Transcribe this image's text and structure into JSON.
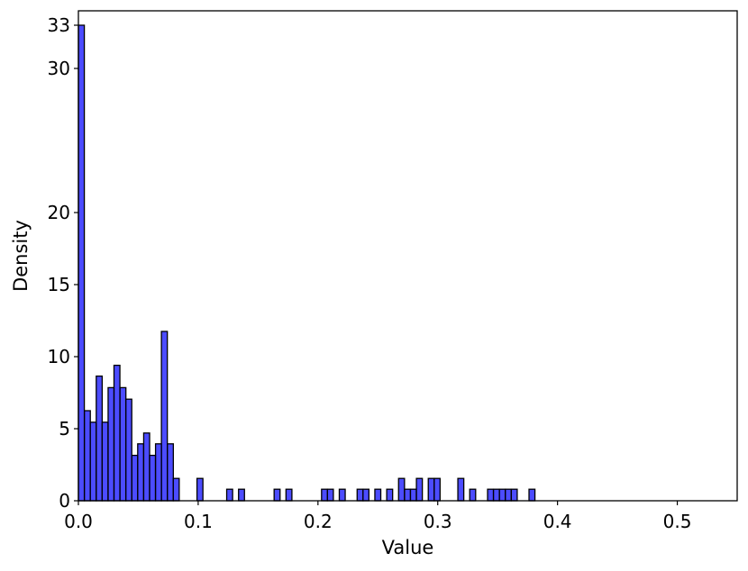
{
  "chart_data": {
    "type": "bar",
    "title": "",
    "xlabel": "Value",
    "ylabel": "Density",
    "xlim": [
      0.0,
      0.55
    ],
    "ylim": [
      0,
      34
    ],
    "xticks": [
      0.0,
      0.1,
      0.2,
      0.3,
      0.4,
      0.5
    ],
    "xtick_labels": [
      "0.0",
      "0.1",
      "0.2",
      "0.3",
      "0.4",
      "0.5"
    ],
    "yticks": [
      0,
      5,
      10,
      15,
      20,
      30,
      33
    ],
    "ytick_labels": [
      "0",
      "5",
      "10",
      "15",
      "20",
      "30",
      "33"
    ],
    "grid": false,
    "legend": "none",
    "bar_color": "#0000ff",
    "bar_opacity": 0.7,
    "edge_color": "#000000",
    "bin_width": 0.00495,
    "series": [
      {
        "values": [
          [
            0.0,
            33.0
          ],
          [
            0.005,
            6.25
          ],
          [
            0.0099,
            5.45
          ],
          [
            0.0149,
            8.65
          ],
          [
            0.0198,
            5.45
          ],
          [
            0.0248,
            7.85
          ],
          [
            0.0297,
            9.4
          ],
          [
            0.0347,
            7.85
          ],
          [
            0.0396,
            7.05
          ],
          [
            0.0446,
            3.15
          ],
          [
            0.0495,
            3.95
          ],
          [
            0.0545,
            4.7
          ],
          [
            0.0594,
            3.15
          ],
          [
            0.0644,
            3.95
          ],
          [
            0.0693,
            11.75
          ],
          [
            0.0743,
            3.95
          ],
          [
            0.0792,
            1.55
          ],
          [
            0.099,
            1.55
          ],
          [
            0.1238,
            0.8
          ],
          [
            0.1337,
            0.8
          ],
          [
            0.1634,
            0.8
          ],
          [
            0.1733,
            0.8
          ],
          [
            0.203,
            0.8
          ],
          [
            0.2079,
            0.8
          ],
          [
            0.2178,
            0.8
          ],
          [
            0.2327,
            0.8
          ],
          [
            0.2376,
            0.8
          ],
          [
            0.2475,
            0.8
          ],
          [
            0.2574,
            0.8
          ],
          [
            0.2673,
            1.55
          ],
          [
            0.2723,
            0.8
          ],
          [
            0.2772,
            0.8
          ],
          [
            0.2822,
            1.55
          ],
          [
            0.2921,
            1.55
          ],
          [
            0.297,
            1.55
          ],
          [
            0.3168,
            1.55
          ],
          [
            0.3267,
            0.8
          ],
          [
            0.3416,
            0.8
          ],
          [
            0.3465,
            0.8
          ],
          [
            0.3515,
            0.8
          ],
          [
            0.3564,
            0.8
          ],
          [
            0.3614,
            0.8
          ],
          [
            0.3762,
            0.8
          ]
        ]
      }
    ]
  }
}
